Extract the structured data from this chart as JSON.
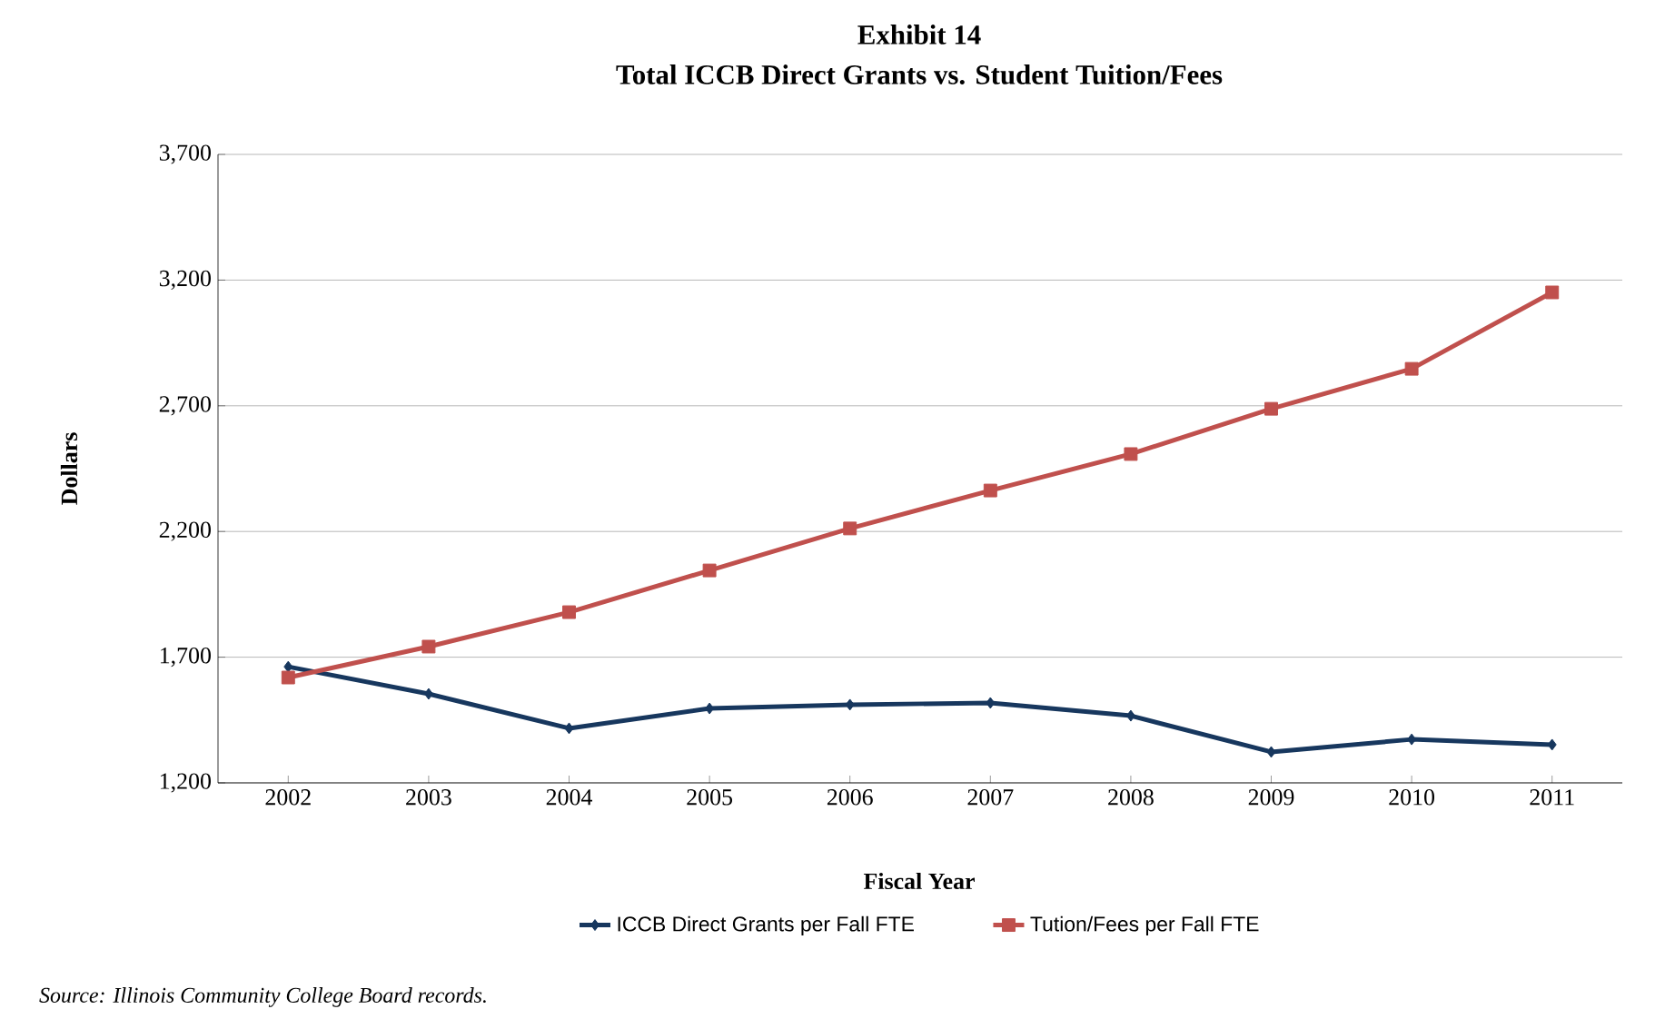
{
  "chart_data": {
    "type": "line",
    "title": "Exhibit 14",
    "subtitle": "Total ICCB Direct Grants vs. Student Tuition/Fees",
    "xlabel": "Fiscal Year",
    "ylabel": "Dollars",
    "categories": [
      "2002",
      "2003",
      "2004",
      "2005",
      "2006",
      "2007",
      "2008",
      "2009",
      "2010",
      "2011"
    ],
    "series": [
      {
        "name": "ICCB Direct Grants  per Fall FTE",
        "color": "#17375e",
        "marker": "diamond",
        "values": [
          1662,
          1554,
          1417,
          1496,
          1511,
          1518,
          1467,
          1323,
          1373,
          1352
        ]
      },
      {
        "name": "Tution/Fees per Fall FTE",
        "color": "#c0504d",
        "marker": "square",
        "values": [
          1619,
          1742,
          1879,
          2045,
          2212,
          2363,
          2508,
          2688,
          2847,
          3151
        ]
      }
    ],
    "ylim": [
      1200,
      3700
    ],
    "yticks": [
      {
        "value": 1200,
        "label": "1,200"
      },
      {
        "value": 1700,
        "label": "1,700"
      },
      {
        "value": 2200,
        "label": "2,200"
      },
      {
        "value": 2700,
        "label": "2,700"
      },
      {
        "value": 3200,
        "label": "3,200"
      },
      {
        "value": 3700,
        "label": "3,700"
      }
    ],
    "grid": "y",
    "legend": "bottom",
    "annotations": [
      "*Source:  Illinois Community College Board records.*"
    ]
  }
}
